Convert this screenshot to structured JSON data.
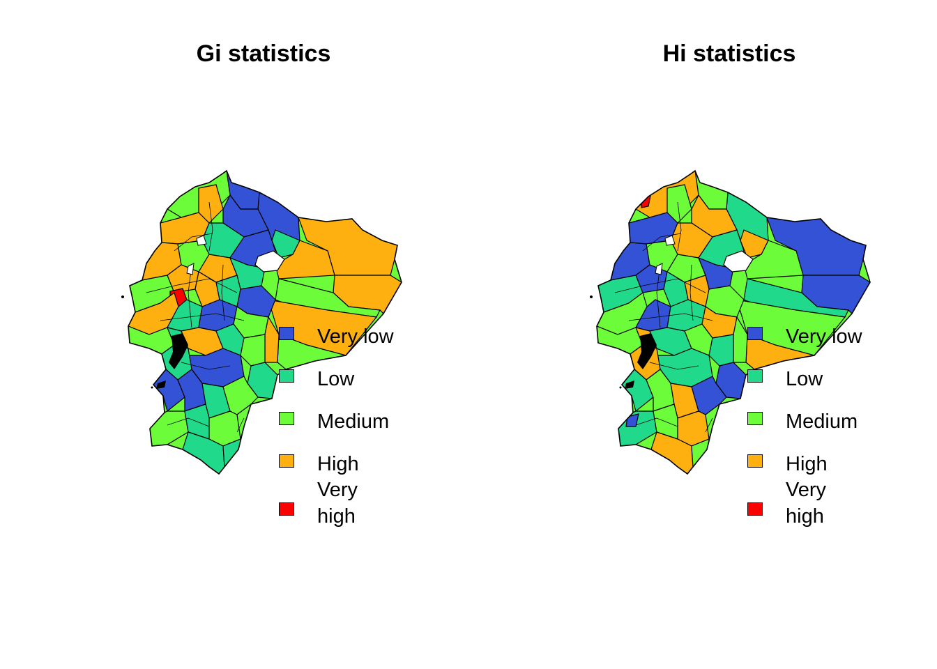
{
  "maps": [
    {
      "title": "Gi statistics",
      "legend": [
        {
          "label": "Very low",
          "color": "#3352d6"
        },
        {
          "label": "Low",
          "color": "#21d98a"
        },
        {
          "label": "Medium",
          "color": "#6dfc3a"
        },
        {
          "label": "High",
          "color": "#fdb00f"
        },
        {
          "label": "Very high",
          "color": "#ff0000"
        }
      ]
    },
    {
      "title": "Hi statistics",
      "legend": [
        {
          "label": "Very low",
          "color": "#3352d6"
        },
        {
          "label": "Low",
          "color": "#21d98a"
        },
        {
          "label": "Medium",
          "color": "#6dfc3a"
        },
        {
          "label": "High",
          "color": "#fdb00f"
        },
        {
          "label": "Very high",
          "color": "#ff0000"
        }
      ]
    }
  ]
}
